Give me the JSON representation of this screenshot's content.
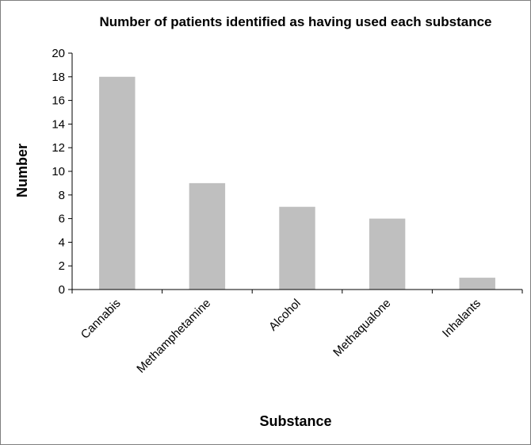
{
  "chart_data": {
    "type": "bar",
    "title": "Number of patients identified as having used each substance",
    "xlabel": "Substance",
    "ylabel": "Number",
    "categories": [
      "Cannabis",
      "Methamphetamine",
      "Alcohol",
      "Methaqualone",
      "Inhalants"
    ],
    "values": [
      18,
      9,
      7,
      6,
      1
    ],
    "ylim": [
      0,
      20
    ],
    "yticks": [
      "0",
      "2",
      "4",
      "6",
      "8",
      "10",
      "12",
      "14",
      "16",
      "18",
      "20"
    ],
    "grid": false,
    "legend": "none",
    "bar_color": "#bfbfbf",
    "axis_color": "#000000"
  }
}
